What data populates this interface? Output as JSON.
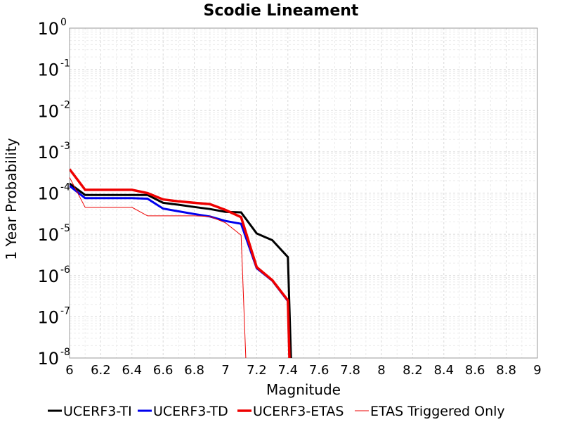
{
  "chart_data": {
    "type": "line",
    "title": "Scodie Lineament",
    "xlabel": "Magnitude",
    "ylabel": "1 Year Probability",
    "xlim": [
      6,
      9
    ],
    "ylim": [
      1e-08,
      1
    ],
    "yscale": "log",
    "grid": true,
    "legend_position": "bottom",
    "x_ticks": [
      "6",
      "6.2",
      "6.4",
      "6.6",
      "6.8",
      "7",
      "7.2",
      "7.4",
      "7.6",
      "7.8",
      "8",
      "8.2",
      "8.4",
      "8.6",
      "8.8",
      "9"
    ],
    "y_ticks": [
      {
        "base": "10",
        "exp": "0"
      },
      {
        "base": "10",
        "exp": "-1"
      },
      {
        "base": "10",
        "exp": "-2"
      },
      {
        "base": "10",
        "exp": "-3"
      },
      {
        "base": "10",
        "exp": "-4"
      },
      {
        "base": "10",
        "exp": "-5"
      },
      {
        "base": "10",
        "exp": "-6"
      },
      {
        "base": "10",
        "exp": "-7"
      },
      {
        "base": "10",
        "exp": "-8"
      }
    ],
    "series": [
      {
        "name": "UCERF3-TI",
        "color": "#000000",
        "width": 3,
        "points": [
          [
            6.0,
            0.00017
          ],
          [
            6.1,
            9e-05
          ],
          [
            6.2,
            9e-05
          ],
          [
            6.3,
            9e-05
          ],
          [
            6.4,
            9e-05
          ],
          [
            6.5,
            9e-05
          ],
          [
            6.6,
            5.8e-05
          ],
          [
            6.7,
            5.2e-05
          ],
          [
            6.8,
            4.6e-05
          ],
          [
            6.9,
            4.1e-05
          ],
          [
            7.0,
            3.5e-05
          ],
          [
            7.1,
            3.4e-05
          ],
          [
            7.2,
            1.05e-05
          ],
          [
            7.3,
            7.2e-06
          ],
          [
            7.4,
            2.8e-06
          ],
          [
            7.42,
            7e-09
          ]
        ]
      },
      {
        "name": "UCERF3-TD",
        "color": "#0000ee",
        "width": 3,
        "points": [
          [
            6.0,
            0.00015
          ],
          [
            6.1,
            7.5e-05
          ],
          [
            6.2,
            7.5e-05
          ],
          [
            6.3,
            7.5e-05
          ],
          [
            6.4,
            7.5e-05
          ],
          [
            6.5,
            7.3e-05
          ],
          [
            6.6,
            4.2e-05
          ],
          [
            6.7,
            3.6e-05
          ],
          [
            6.8,
            3.1e-05
          ],
          [
            6.9,
            2.7e-05
          ],
          [
            7.0,
            2.1e-05
          ],
          [
            7.1,
            1.8e-05
          ],
          [
            7.2,
            1.5e-06
          ],
          [
            7.3,
            7.5e-07
          ],
          [
            7.4,
            2.4e-07
          ],
          [
            7.41,
            7e-09
          ]
        ]
      },
      {
        "name": "UCERF3-ETAS",
        "color": "#ee0000",
        "width": 3.5,
        "points": [
          [
            6.0,
            0.00038
          ],
          [
            6.1,
            0.00012
          ],
          [
            6.2,
            0.00012
          ],
          [
            6.3,
            0.00012
          ],
          [
            6.4,
            0.00012
          ],
          [
            6.5,
            0.0001
          ],
          [
            6.6,
            7e-05
          ],
          [
            6.7,
            6.3e-05
          ],
          [
            6.8,
            5.8e-05
          ],
          [
            6.9,
            5.4e-05
          ],
          [
            7.0,
            3.9e-05
          ],
          [
            7.1,
            2.6e-05
          ],
          [
            7.2,
            1.6e-06
          ],
          [
            7.3,
            7.7e-07
          ],
          [
            7.4,
            2.5e-07
          ],
          [
            7.41,
            7e-09
          ]
        ]
      },
      {
        "name": "ETAS Triggered Only",
        "color": "#ee0000",
        "width": 1,
        "points": [
          [
            6.0,
            0.00024
          ],
          [
            6.1,
            4.5e-05
          ],
          [
            6.2,
            4.5e-05
          ],
          [
            6.3,
            4.5e-05
          ],
          [
            6.4,
            4.5e-05
          ],
          [
            6.5,
            2.8e-05
          ],
          [
            6.6,
            2.8e-05
          ],
          [
            6.7,
            2.8e-05
          ],
          [
            6.8,
            2.8e-05
          ],
          [
            6.9,
            2.7e-05
          ],
          [
            7.0,
            1.9e-05
          ],
          [
            7.1,
            9.5e-06
          ],
          [
            7.13,
            7e-09
          ]
        ]
      }
    ]
  }
}
